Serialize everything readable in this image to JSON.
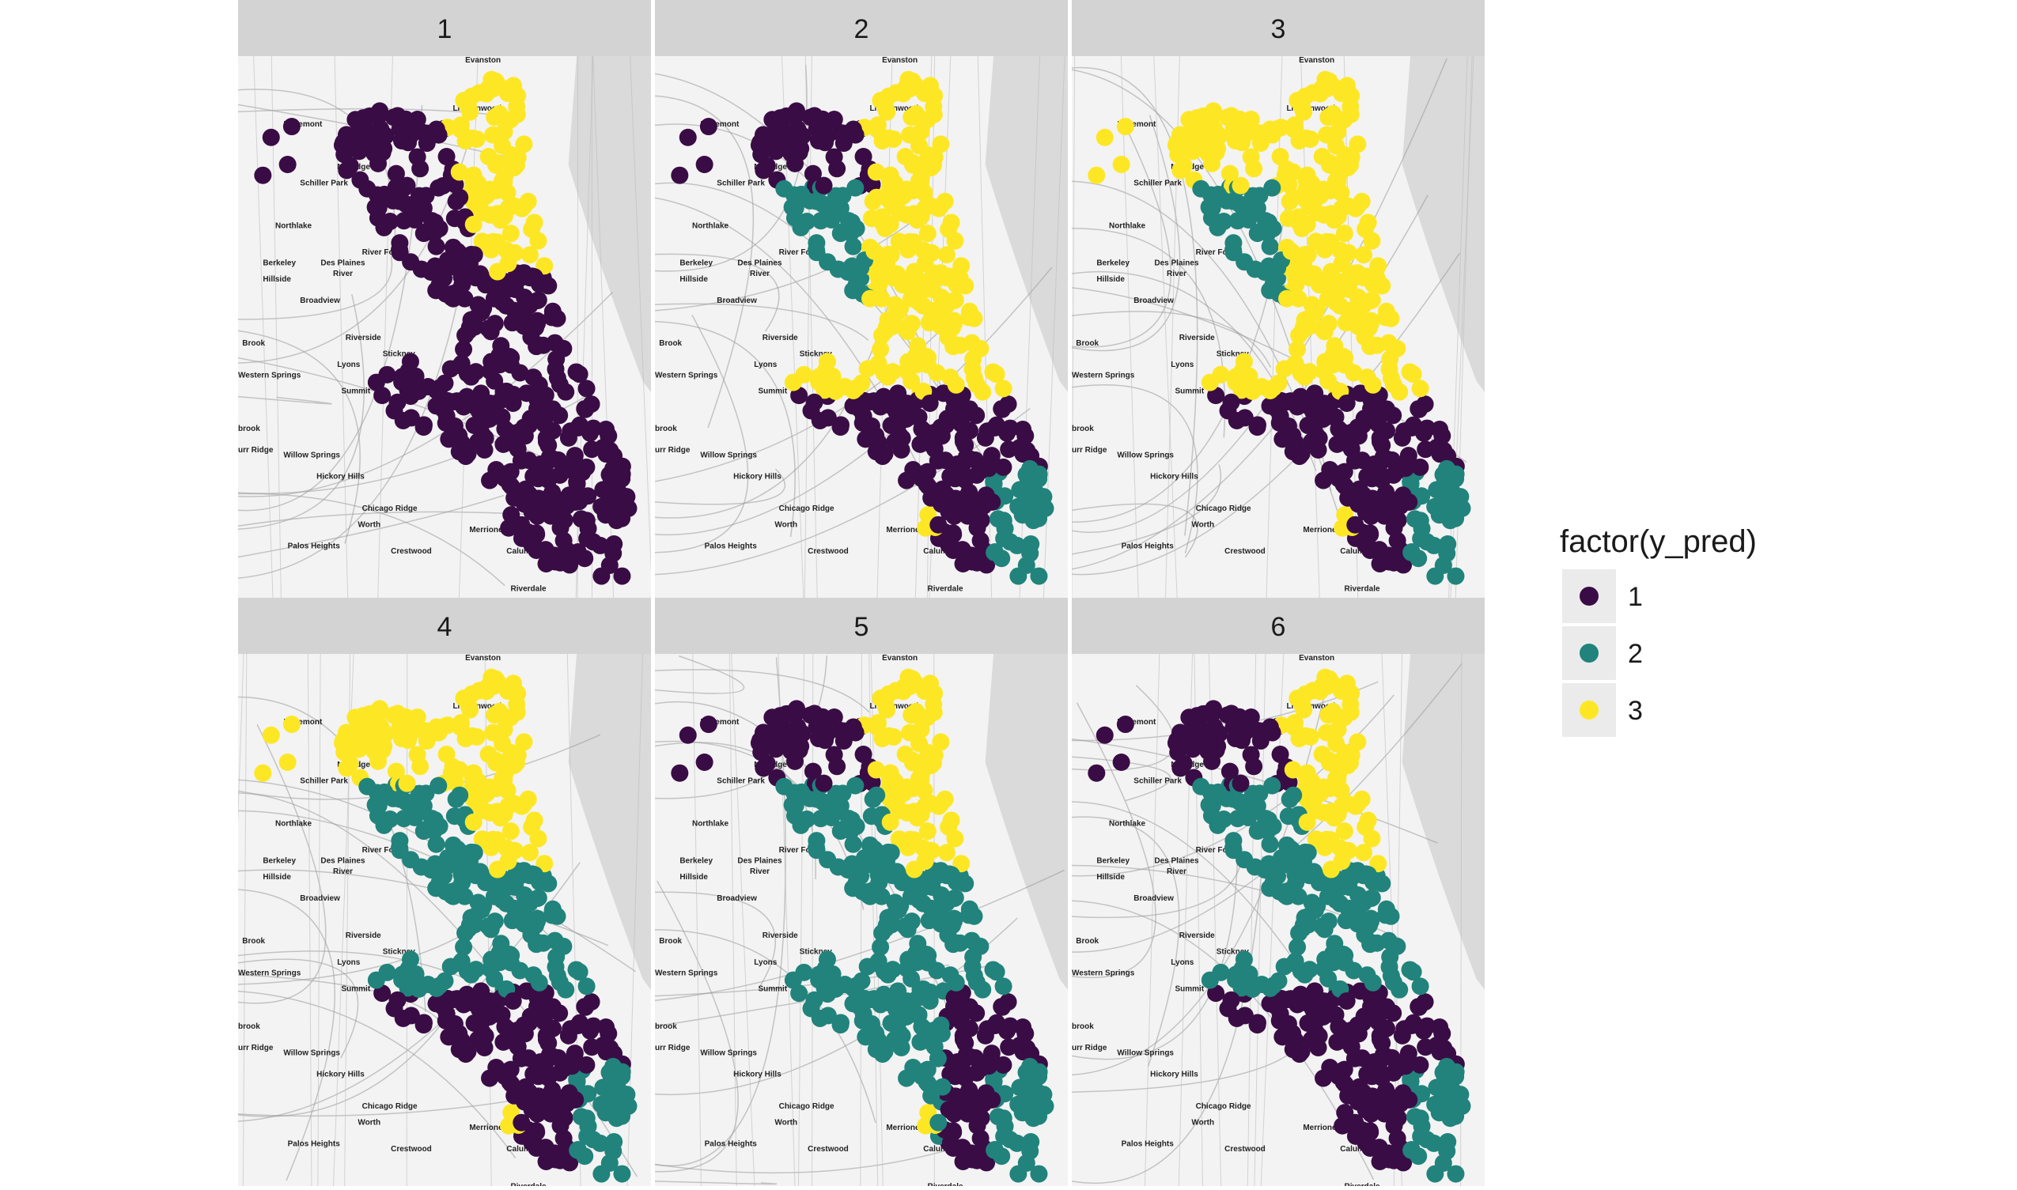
{
  "chart_data": {
    "type": "scatter",
    "layout": "facet-wrap 2x3 over a basemap",
    "facet_variable": "k",
    "facets": [
      {
        "label": "1"
      },
      {
        "label": "2"
      },
      {
        "label": "3"
      },
      {
        "label": "4"
      },
      {
        "label": "5"
      },
      {
        "label": "6"
      }
    ],
    "legend": {
      "title": "factor(y_pred)",
      "placement": "right",
      "entries": [
        {
          "label": "1",
          "color": "#3a0c45"
        },
        {
          "label": "2",
          "color": "#21837c"
        },
        {
          "label": "3",
          "color": "#fde725"
        }
      ]
    },
    "basemap_labels": [
      "Evanston",
      "Lincolnwood",
      "Rosemont",
      "Norridge",
      "Schiller Park",
      "Northlake",
      "River Forest",
      "Des Plaines",
      "River",
      "Berkeley",
      "Hillside",
      "Broadview",
      "Riverside",
      "Brook",
      "Stickney",
      "Lyons",
      "Western Springs",
      "Summit",
      "brook",
      "urr Ridge",
      "Willow Springs",
      "Hickory Hills",
      "Chicago Ridge",
      "Worth",
      "Merrionette",
      "Palos Heights",
      "Crestwood",
      "Calumet Park",
      "Riverdale"
    ]
  },
  "colors": {
    "strip": "#d3d3d3",
    "land": "#f3f3f3",
    "water": "#dadada",
    "road": "#9a9a9a",
    "cluster_1": "#3a0c45",
    "cluster_2": "#21837c",
    "cluster_3": "#fde725"
  }
}
